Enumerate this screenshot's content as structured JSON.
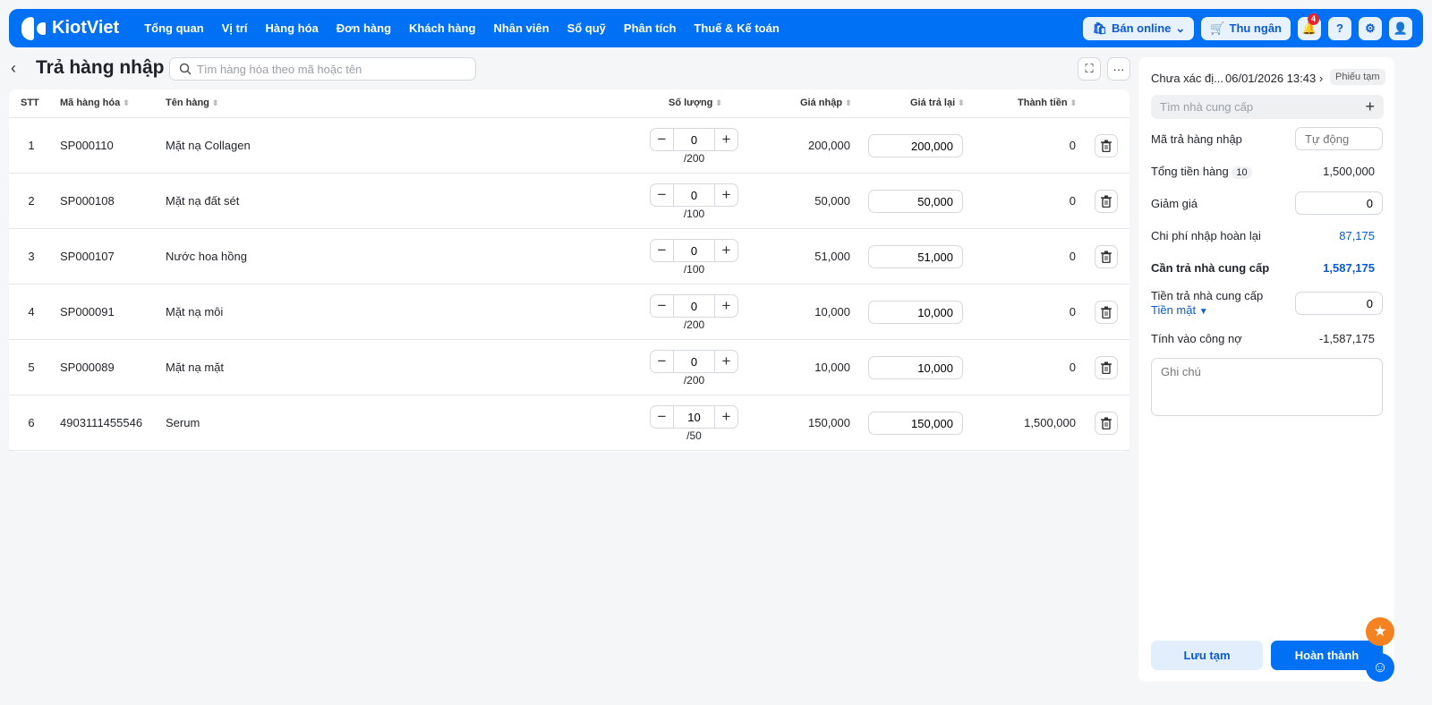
{
  "nav": {
    "brand": "KiotViet",
    "menu": [
      "Tổng quan",
      "Vị trí",
      "Hàng hóa",
      "Đơn hàng",
      "Khách hàng",
      "Nhân viên",
      "Sổ quỹ",
      "Phân tích",
      "Thuế & Kế toán"
    ],
    "sell_online": "Bán online",
    "cashier": "Thu ngân",
    "notification_count": "4"
  },
  "page": {
    "title": "Trả hàng nhập",
    "search_placeholder": "Tìm hàng hóa theo mã hoặc tên"
  },
  "table": {
    "headers": [
      "STT",
      "Mã hàng hóa",
      "Tên hàng",
      "Số lượng",
      "Giá nhập",
      "Giá trả lại",
      "Thành tiền"
    ],
    "rows": [
      {
        "stt": "1",
        "code": "SP000110",
        "name": "Mặt nạ Collagen",
        "qty": "0",
        "max": "/200",
        "price": "200,000",
        "return_price": "200,000",
        "total": "0"
      },
      {
        "stt": "2",
        "code": "SP000108",
        "name": "Mặt nạ đất sét",
        "qty": "0",
        "max": "/100",
        "price": "50,000",
        "return_price": "50,000",
        "total": "0"
      },
      {
        "stt": "3",
        "code": "SP000107",
        "name": "Nước hoa hồng",
        "qty": "0",
        "max": "/100",
        "price": "51,000",
        "return_price": "51,000",
        "total": "0"
      },
      {
        "stt": "4",
        "code": "SP000091",
        "name": "Mặt nạ môi",
        "qty": "0",
        "max": "/200",
        "price": "10,000",
        "return_price": "10,000",
        "total": "0"
      },
      {
        "stt": "5",
        "code": "SP000089",
        "name": "Mặt nạ mặt",
        "qty": "0",
        "max": "/200",
        "price": "10,000",
        "return_price": "10,000",
        "total": "0"
      },
      {
        "stt": "6",
        "code": "4903111455546",
        "name": "Serum",
        "qty": "10",
        "max": "/50",
        "price": "150,000",
        "return_price": "150,000",
        "total": "1,500,000"
      }
    ]
  },
  "panel": {
    "creator": "Chưa xác đị...",
    "datetime": "06/01/2026 13:43",
    "status": "Phiếu tạm",
    "supplier_placeholder": "Tìm nhà cung cấp",
    "code_label": "Mã trả hàng nhập",
    "code_placeholder": "Tự động",
    "total_label": "Tổng tiền hàng",
    "total_count": "10",
    "total_value": "1,500,000",
    "discount_label": "Giảm giá",
    "discount_value": "0",
    "fee_label": "Chi phí nhập hoàn lại",
    "fee_value": "87,175",
    "due_label": "Cần trả nhà cung cấp",
    "due_value": "1,587,175",
    "paid_label": "Tiền trả nhà cung cấp",
    "method": "Tiền mặt",
    "paid_value": "0",
    "debt_label": "Tính vào công nợ",
    "debt_value": "-1,587,175",
    "note_placeholder": "Ghi chú",
    "save_draft": "Lưu tạm",
    "complete": "Hoàn thành"
  },
  "colors": {
    "primary": "#0070f4",
    "accent_text": "#0a5bd3",
    "badge": "#e8252e",
    "fab_star": "#f58220"
  }
}
